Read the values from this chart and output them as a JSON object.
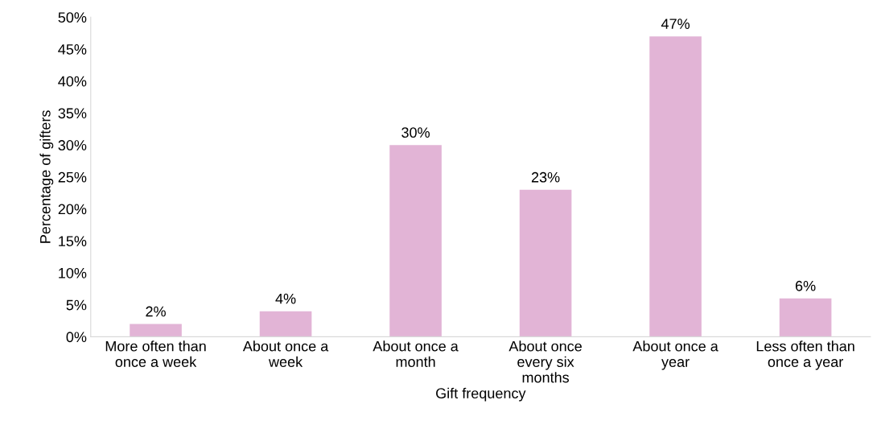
{
  "chart_data": {
    "type": "bar",
    "xlabel": "Gift frequency",
    "ylabel": "Percentage of gifters",
    "categories": [
      "More often than\nonce a week",
      "About once a\nweek",
      "About once a\nmonth",
      "About once\nevery six\nmonths",
      "About once a\nyear",
      "Less often than\nonce a year"
    ],
    "values": [
      2,
      4,
      30,
      23,
      47,
      6
    ],
    "value_labels": [
      "2%",
      "4%",
      "30%",
      "23%",
      "47%",
      "6%"
    ],
    "color": "#e2b4d6",
    "ylim": [
      0,
      50
    ],
    "yticks": [
      {
        "value": 0,
        "label": "0%"
      },
      {
        "value": 5,
        "label": "5%"
      },
      {
        "value": 10,
        "label": "10%"
      },
      {
        "value": 15,
        "label": "15%"
      },
      {
        "value": 20,
        "label": "20%"
      },
      {
        "value": 25,
        "label": "25%"
      },
      {
        "value": 30,
        "label": "30%"
      },
      {
        "value": 35,
        "label": "35%"
      },
      {
        "value": 40,
        "label": "40%"
      },
      {
        "value": 45,
        "label": "45%"
      },
      {
        "value": 50,
        "label": "50%"
      }
    ],
    "grid": false,
    "legend": false
  }
}
